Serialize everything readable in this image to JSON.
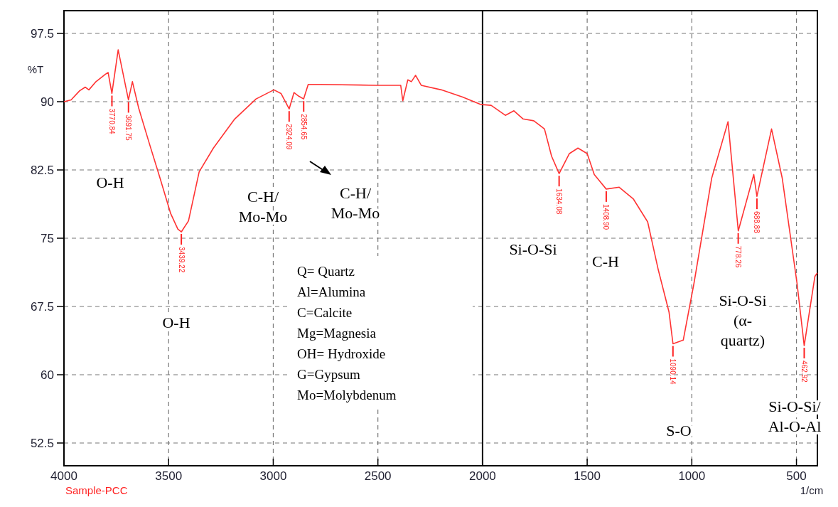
{
  "chart_data": {
    "type": "line",
    "xlabel": "1/cm",
    "ylabel": "%T",
    "x": [
      4000,
      3966,
      3925,
      3898,
      3881,
      3847,
      3803,
      3789,
      3771,
      3741,
      3692,
      3673,
      3643,
      3592,
      3541,
      3490,
      3456,
      3439,
      3405,
      3354,
      3286,
      3184,
      3082,
      2997,
      2963,
      2924,
      2901,
      2878,
      2855,
      2833,
      2776,
      2503,
      2391,
      2381,
      2357,
      2340,
      2320,
      2293,
      2197,
      2095,
      2010,
      1959,
      1891,
      1850,
      1806,
      1755,
      1704,
      1670,
      1634,
      1585,
      1544,
      1500,
      1466,
      1409,
      1347,
      1279,
      1211,
      1160,
      1109,
      1090,
      1041,
      990,
      905,
      827,
      778,
      704,
      689,
      619,
      568,
      497,
      463,
      412,
      400
    ],
    "series": [
      {
        "color": "#ff3333",
        "values": [
          90,
          90.2,
          91.2,
          91.6,
          91.3,
          92.2,
          93.0,
          93.2,
          90.9,
          95.7,
          90.2,
          92.2,
          89.3,
          85.4,
          81.6,
          77.7,
          76.0,
          75.7,
          76.9,
          82.3,
          84.9,
          88.1,
          90.3,
          91.3,
          90.9,
          89.2,
          91.0,
          90.6,
          90.3,
          91.9,
          91.9,
          91.8,
          91.8,
          90.1,
          92.4,
          92.2,
          92.9,
          91.8,
          91.3,
          90.5,
          89.7,
          89.6,
          88.5,
          89.0,
          88.1,
          87.9,
          87.0,
          84.0,
          82.1,
          84.3,
          84.9,
          84.3,
          82.0,
          80.4,
          80.6,
          79.3,
          76.8,
          71.5,
          66.9,
          63.4,
          63.8,
          70.0,
          81.6,
          87.8,
          75.8,
          82.0,
          79.6,
          87.0,
          81.6,
          70.0,
          63.2,
          70.8,
          71.2
        ]
      }
    ],
    "xlim": [
      4000,
      400
    ],
    "ylim": [
      50,
      100
    ],
    "xticks": [
      4000,
      3500,
      3000,
      2500,
      2000,
      1500,
      1000,
      500
    ],
    "yticks": [
      52.5,
      60,
      67.5,
      75,
      82.5,
      90,
      97.5
    ],
    "grid": true,
    "marker": "none",
    "line_style": "solid",
    "ref_lines": [
      {
        "axis": "x",
        "value": 2000,
        "color": "#000000"
      }
    ],
    "annotations": [
      {
        "text": "3770.84",
        "x": 3770.84,
        "y": 90.9
      },
      {
        "text": "3691.75",
        "x": 3691.75,
        "y": 90.2
      },
      {
        "text": "3439.22",
        "x": 3439.22,
        "y": 75.7
      },
      {
        "text": "2924.09",
        "x": 2924.09,
        "y": 89.2
      },
      {
        "text": "2854.65",
        "x": 2854.65,
        "y": 90.3
      },
      {
        "text": "1634.08",
        "x": 1634.08,
        "y": 82.1
      },
      {
        "text": "1408.90",
        "x": 1408.9,
        "y": 80.4
      },
      {
        "text": "1090.14",
        "x": 1090.14,
        "y": 63.4
      },
      {
        "text": "778.26",
        "x": 778.26,
        "y": 75.8
      },
      {
        "text": "688.88",
        "x": 688.88,
        "y": 79.6
      },
      {
        "text": "462.92",
        "x": 462.92,
        "y": 63.2
      },
      "O-H",
      "O-H",
      "C-H/\nMo-Mo",
      "C-H/\nMo-Mo",
      "Si-O-Si",
      "C-H",
      "Si-O-Si\n(α-\nquartz)",
      "S-O",
      "Si-O-Si/\nAl-O-Al",
      "Q= Quartz",
      "Al=Alumina",
      "C=Calcite",
      "Mg=Magnesia",
      "OH= Hydroxide",
      "G=Gypsum",
      "Mo=Molybdenum",
      "Sample-PCC"
    ]
  }
}
